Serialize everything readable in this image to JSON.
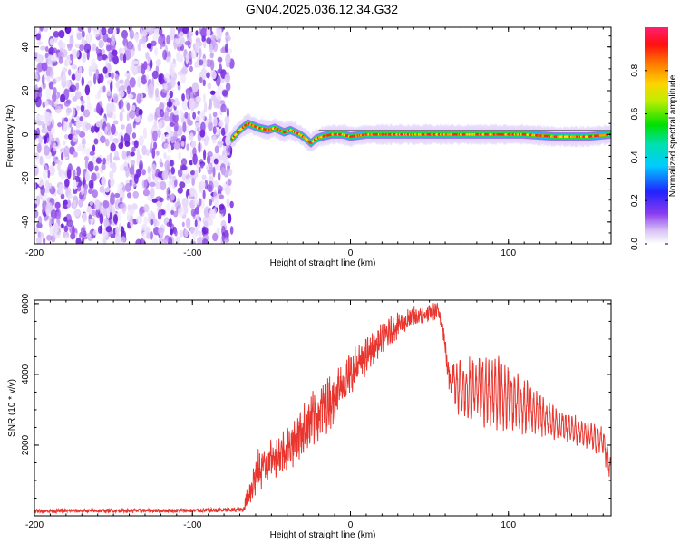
{
  "title": "GN04.2025.036.12.34.G32",
  "chart_data": [
    {
      "type": "heatmap",
      "xlabel": "Height of straight line (km)",
      "ylabel": "Frequency (Hz)",
      "xlim": [
        -200,
        165
      ],
      "ylim": [
        -50,
        49
      ],
      "xticks": [
        -200,
        -100,
        0,
        100
      ],
      "yticks": [
        -40,
        -20,
        0,
        20,
        40
      ],
      "grid": false,
      "noise_region_x": [
        -200,
        -75
      ],
      "signal_region_x": [
        -75,
        165
      ],
      "frequency_track": [
        {
          "x": -75,
          "y": -2
        },
        {
          "x": -70,
          "y": 2
        },
        {
          "x": -65,
          "y": 5
        },
        {
          "x": -58,
          "y": 3
        },
        {
          "x": -52,
          "y": 2
        },
        {
          "x": -48,
          "y": 3
        },
        {
          "x": -42,
          "y": 1
        },
        {
          "x": -38,
          "y": 2
        },
        {
          "x": -32,
          "y": 0
        },
        {
          "x": -28,
          "y": -2
        },
        {
          "x": -25,
          "y": -4
        },
        {
          "x": -22,
          "y": -2
        },
        {
          "x": -18,
          "y": -1
        },
        {
          "x": -12,
          "y": 0
        },
        {
          "x": -5,
          "y": 0
        },
        {
          "x": 0,
          "y": -1
        },
        {
          "x": 10,
          "y": 0
        },
        {
          "x": 30,
          "y": 0
        },
        {
          "x": 60,
          "y": 0
        },
        {
          "x": 90,
          "y": 0
        },
        {
          "x": 110,
          "y": 0
        },
        {
          "x": 130,
          "y": -1
        },
        {
          "x": 150,
          "y": -1
        },
        {
          "x": 165,
          "y": 0
        }
      ],
      "colorbar": {
        "label": "Normalized spectral amplitude",
        "range": [
          0,
          1
        ],
        "ticks": [
          "0.0",
          "0.2",
          "0.4",
          "0.6",
          "0.8"
        ]
      }
    },
    {
      "type": "line",
      "xlabel": "Height of straight line (km)",
      "ylabel": "SNR (10 * v/v)",
      "xlim": [
        -200,
        165
      ],
      "ylim": [
        0,
        6100
      ],
      "xticks": [
        -200,
        -100,
        0,
        100
      ],
      "yticks": [
        2000,
        4000,
        6000
      ],
      "grid": false,
      "series": [
        {
          "color": "#e8362f",
          "envelope": [
            {
              "x": -200,
              "mean": 140,
              "amp": 60
            },
            {
              "x": -100,
              "mean": 150,
              "amp": 70
            },
            {
              "x": -68,
              "mean": 170,
              "amp": 80
            },
            {
              "x": -64,
              "mean": 700,
              "amp": 500
            },
            {
              "x": -58,
              "mean": 1300,
              "amp": 600
            },
            {
              "x": -50,
              "mean": 1600,
              "amp": 500
            },
            {
              "x": -40,
              "mean": 1900,
              "amp": 600
            },
            {
              "x": -30,
              "mean": 2400,
              "amp": 700
            },
            {
              "x": -20,
              "mean": 2900,
              "amp": 800
            },
            {
              "x": -10,
              "mean": 3400,
              "amp": 700
            },
            {
              "x": 0,
              "mean": 4000,
              "amp": 600
            },
            {
              "x": 10,
              "mean": 4500,
              "amp": 500
            },
            {
              "x": 20,
              "mean": 5000,
              "amp": 400
            },
            {
              "x": 30,
              "mean": 5400,
              "amp": 350
            },
            {
              "x": 40,
              "mean": 5600,
              "amp": 300
            },
            {
              "x": 50,
              "mean": 5700,
              "amp": 250
            },
            {
              "x": 55,
              "mean": 5800,
              "amp": 250
            },
            {
              "x": 58,
              "mean": 5500,
              "amp": 300
            },
            {
              "x": 62,
              "mean": 4000,
              "amp": 400
            },
            {
              "x": 70,
              "mean": 3600,
              "amp": 900
            },
            {
              "x": 90,
              "mean": 3500,
              "amp": 1100
            },
            {
              "x": 110,
              "mean": 3100,
              "amp": 800
            },
            {
              "x": 130,
              "mean": 2600,
              "amp": 500
            },
            {
              "x": 150,
              "mean": 2300,
              "amp": 400
            },
            {
              "x": 160,
              "mean": 2100,
              "amp": 500
            },
            {
              "x": 165,
              "mean": 1300,
              "amp": 400
            }
          ]
        }
      ]
    }
  ]
}
